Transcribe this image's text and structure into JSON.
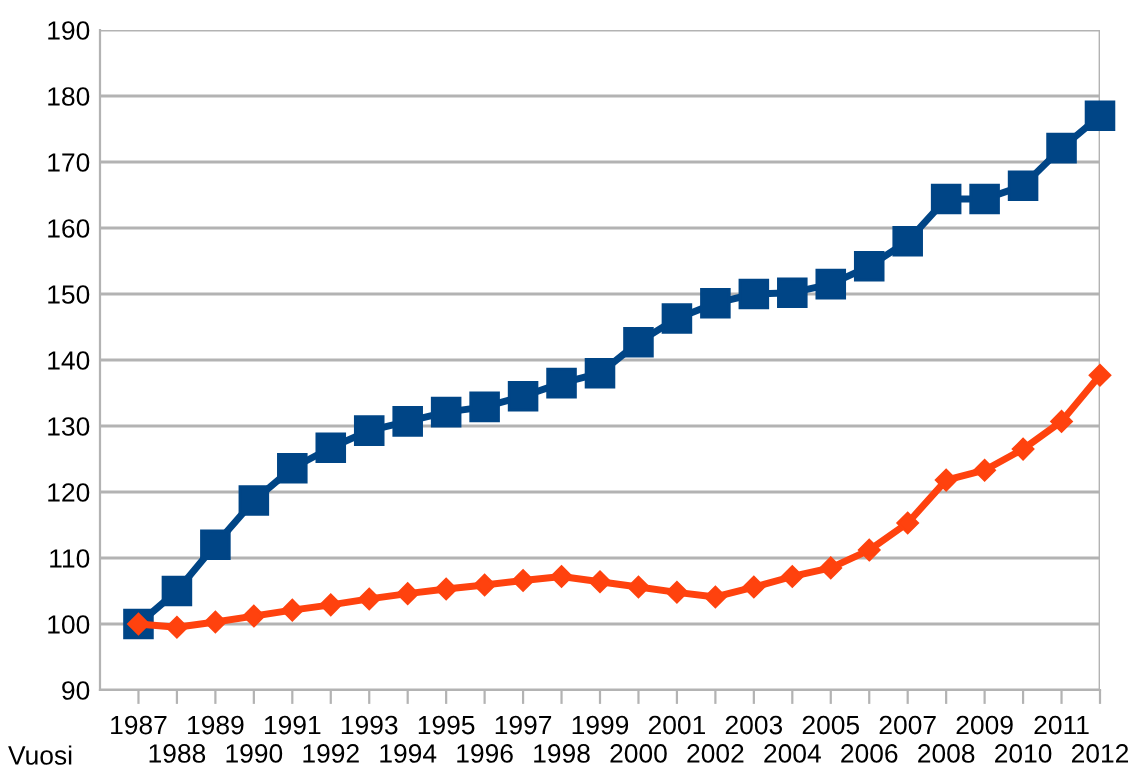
{
  "chart_data": {
    "type": "line",
    "xlabel": "Vuosi",
    "categories": [
      "1987",
      "1988",
      "1989",
      "1990",
      "1991",
      "1992",
      "1993",
      "1994",
      "1995",
      "1996",
      "1997",
      "1998",
      "1999",
      "2000",
      "2001",
      "2002",
      "2003",
      "2004",
      "2005",
      "2006",
      "2007",
      "2008",
      "2009",
      "2010",
      "2011",
      "2012"
    ],
    "series": [
      {
        "color": "#004586",
        "marker": "square",
        "values": [
          100,
          105,
          112,
          118.7,
          123.6,
          126.7,
          129.3,
          130.7,
          132.1,
          132.9,
          134.5,
          136.5,
          138,
          142.7,
          146.3,
          148.6,
          150,
          150.2,
          151.5,
          154.2,
          158,
          164.4,
          164.4,
          166.4,
          172.1,
          177
        ]
      },
      {
        "color": "#ff420e",
        "marker": "diamond",
        "values": [
          100,
          99.5,
          100.3,
          101.2,
          102.1,
          102.9,
          103.8,
          104.6,
          105.3,
          105.9,
          106.6,
          107.2,
          106.4,
          105.6,
          104.8,
          104.1,
          105.6,
          107.2,
          108.5,
          111.2,
          115.3,
          121.8,
          123.3,
          126.5,
          130.7,
          137.7
        ]
      }
    ],
    "ylim": [
      90,
      190
    ],
    "yticks": [
      90,
      100,
      110,
      120,
      130,
      140,
      150,
      160,
      170,
      180,
      190
    ],
    "grid": "y",
    "legend": false,
    "line_style": "solid"
  }
}
